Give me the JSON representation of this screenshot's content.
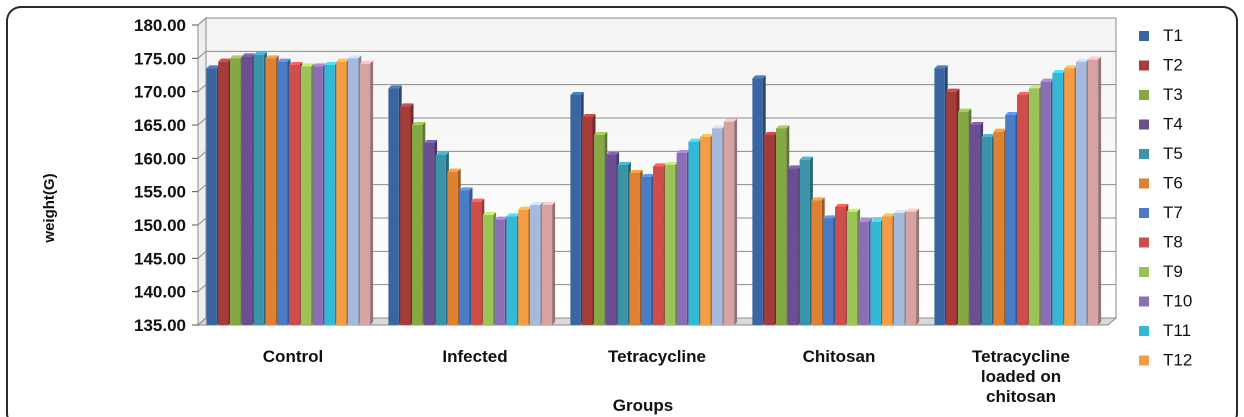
{
  "chart_data": {
    "type": "bar",
    "title": "",
    "xlabel": "Groups",
    "ylabel": "weight(G)",
    "ylim": [
      135,
      180
    ],
    "yticks": [
      "135.00",
      "140.00",
      "145.00",
      "150.00",
      "155.00",
      "160.00",
      "165.00",
      "170.00",
      "175.00",
      "180.00"
    ],
    "grid": true,
    "legend_position": "right",
    "categories": [
      [
        "Control"
      ],
      [
        "Infected"
      ],
      [
        "Tetracycline"
      ],
      [
        "Chitosan"
      ],
      [
        "Tetracycline",
        "loaded on",
        "chitosan"
      ]
    ],
    "series": [
      {
        "name": "T1",
        "color": "#3a65a0",
        "values": [
          173.5,
          170.5,
          169.5,
          172.0,
          173.5
        ]
      },
      {
        "name": "T2",
        "color": "#a63c3a",
        "values": [
          174.5,
          167.8,
          166.2,
          163.5,
          170.0
        ]
      },
      {
        "name": "T3",
        "color": "#86a844",
        "values": [
          175.0,
          165.0,
          163.5,
          164.5,
          167.0
        ]
      },
      {
        "name": "T4",
        "color": "#6a4f93",
        "values": [
          175.3,
          162.3,
          160.5,
          158.5,
          165.0
        ]
      },
      {
        "name": "T5",
        "color": "#3a93a8",
        "values": [
          175.5,
          160.5,
          159.0,
          159.8,
          163.2
        ]
      },
      {
        "name": "T6",
        "color": "#dd8232",
        "values": [
          175.0,
          158.0,
          157.8,
          153.7,
          164.0
        ]
      },
      {
        "name": "T7",
        "color": "#4a7cc5",
        "values": [
          174.5,
          155.2,
          157.2,
          151.0,
          166.5
        ]
      },
      {
        "name": "T8",
        "color": "#cd4e4b",
        "values": [
          174.0,
          153.5,
          158.8,
          152.7,
          169.5
        ]
      },
      {
        "name": "T9",
        "color": "#9cc25a",
        "values": [
          173.8,
          151.5,
          159.0,
          152.0,
          170.5
        ]
      },
      {
        "name": "T10",
        "color": "#8a6fb5",
        "values": [
          173.8,
          150.8,
          160.8,
          150.5,
          171.5
        ]
      },
      {
        "name": "T11",
        "color": "#34b8d6",
        "values": [
          174.0,
          151.3,
          162.5,
          150.5,
          172.8
        ]
      },
      {
        "name": "T12",
        "color": "#f59d45",
        "values": [
          174.5,
          152.3,
          163.2,
          151.3,
          173.5
        ]
      },
      {
        "name": "",
        "color": "#a7b9dd",
        "values": [
          175.0,
          153.0,
          164.5,
          151.8,
          174.5
        ]
      },
      {
        "name": "",
        "color": "#d6a3a3",
        "values": [
          174.2,
          153.0,
          165.5,
          152.0,
          174.8
        ]
      }
    ]
  }
}
